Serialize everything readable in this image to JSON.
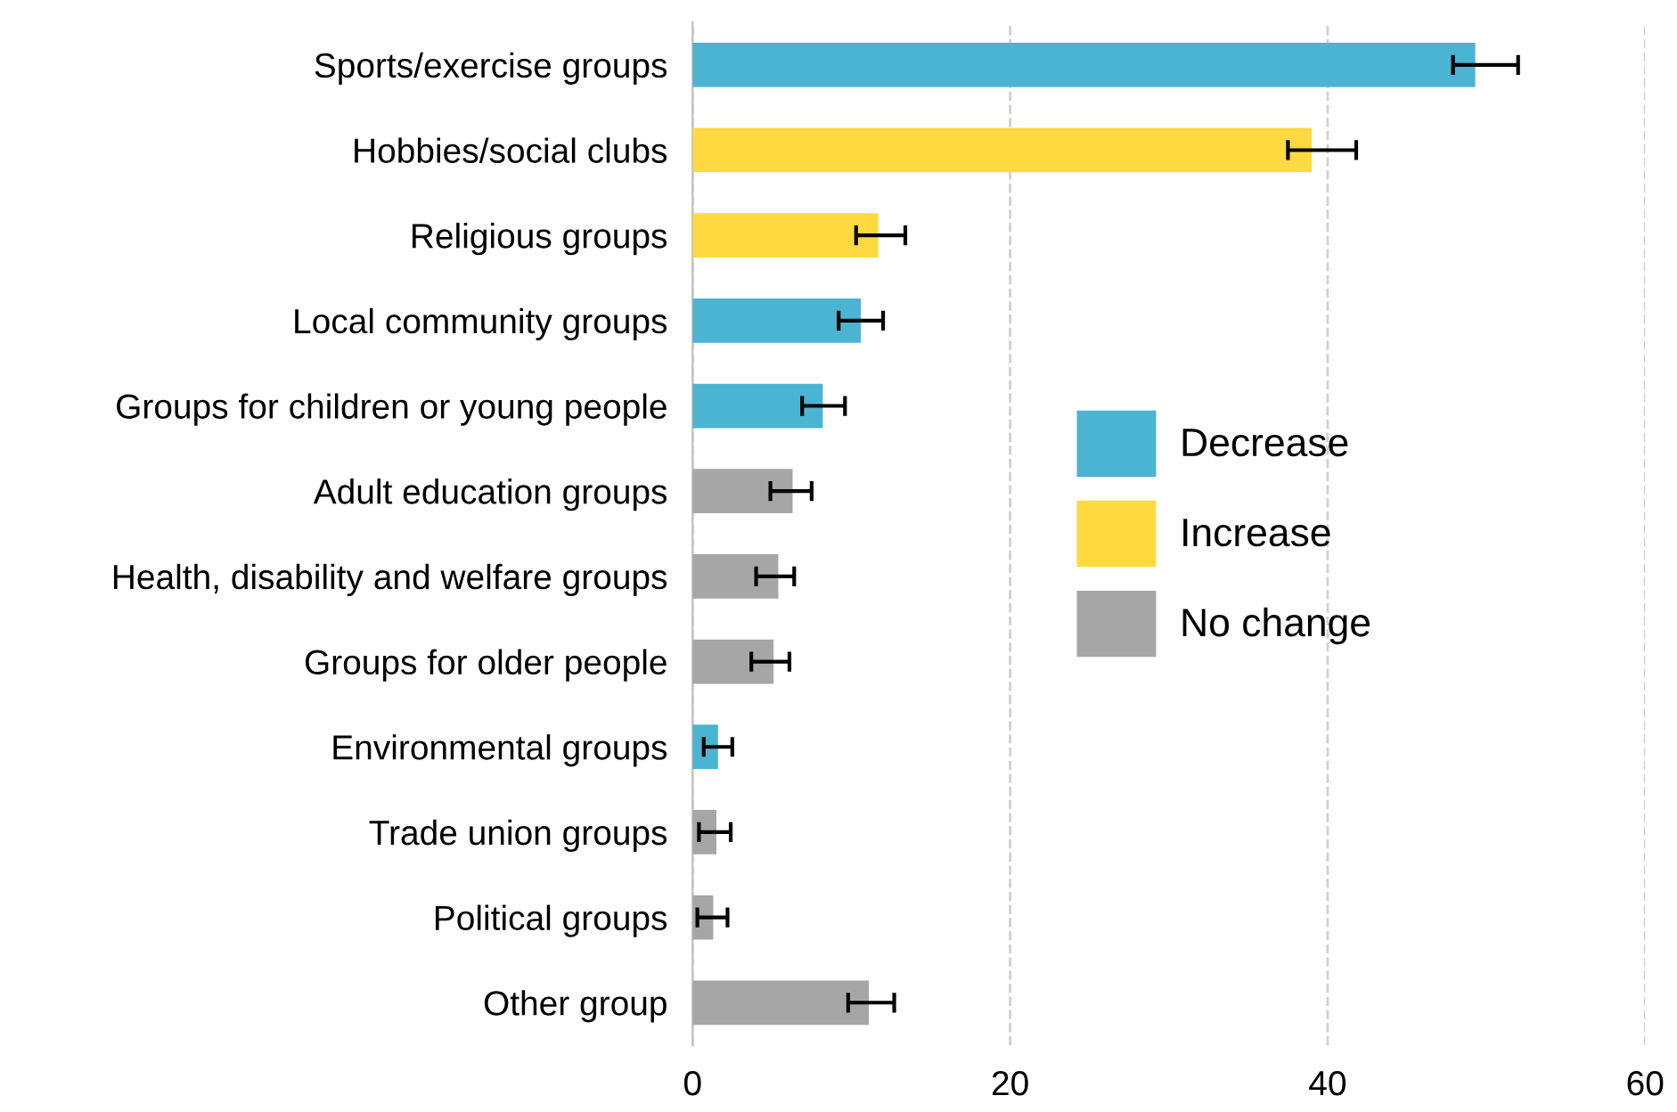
{
  "chart_data": {
    "type": "bar",
    "orientation": "horizontal",
    "categories": [
      "Sports/exercise groups",
      "Hobbies/social clubs",
      "Religious groups",
      "Local community groups",
      "Groups for children or young people",
      "Adult education groups",
      "Health, disability and welfare groups",
      "Groups for older people",
      "Environmental groups",
      "Trade union groups",
      "Political groups",
      "Other group"
    ],
    "series": [
      {
        "name": "Decrease",
        "color": "#4bb4d2",
        "values": [
          49.3,
          null,
          null,
          10.6,
          8.2,
          null,
          null,
          null,
          1.6,
          null,
          null,
          null
        ],
        "errors": [
          [
            47.9,
            52.0
          ],
          null,
          null,
          [
            9.2,
            12.0
          ],
          [
            6.9,
            9.6
          ],
          null,
          null,
          null,
          [
            0.7,
            2.5
          ],
          null,
          null,
          null
        ]
      },
      {
        "name": "Increase",
        "color": "#ffd940",
        "values": [
          null,
          39.0,
          11.7,
          null,
          null,
          null,
          null,
          null,
          null,
          null,
          null,
          null
        ],
        "errors": [
          null,
          [
            37.5,
            41.8
          ],
          [
            10.3,
            13.4
          ],
          null,
          null,
          null,
          null,
          null,
          null,
          null,
          null,
          null
        ]
      },
      {
        "name": "No change",
        "color": "#a6a6a6",
        "values": [
          null,
          null,
          null,
          null,
          null,
          6.3,
          5.4,
          5.1,
          null,
          1.5,
          1.3,
          11.1
        ],
        "errors": [
          null,
          null,
          null,
          null,
          null,
          [
            4.9,
            7.5
          ],
          [
            4.0,
            6.4
          ],
          [
            3.7,
            6.1
          ],
          null,
          [
            0.4,
            2.4
          ],
          [
            0.3,
            2.2
          ],
          [
            9.8,
            12.7
          ]
        ]
      }
    ],
    "xlim": [
      0,
      60
    ],
    "xticks": [
      0,
      20,
      40,
      60
    ],
    "grid": "x",
    "legend": "right"
  }
}
